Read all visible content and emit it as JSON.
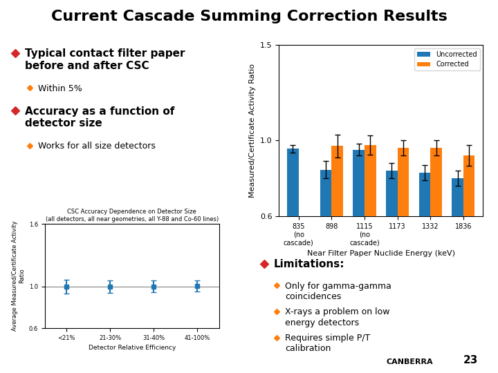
{
  "title": "Current Cascade Summing Correction Results",
  "annotations": [
    {
      "heading": "Typical contact filter paper\nbefore and after CSC",
      "items": [
        "Within 5%"
      ]
    },
    {
      "heading": "Accuracy as a function of\ndetector size",
      "items": [
        "Works for all size detectors"
      ]
    },
    {
      "heading": "Limitations:",
      "items": [
        "Only for gamma-gamma\ncoincidences",
        "X-rays a problem on low\nenergy detectors",
        "Requires simple P/T\ncalibration"
      ]
    }
  ],
  "footer": [
    "CANBERRA",
    "23"
  ],
  "chart_data": [
    {
      "type": "bar",
      "categories": [
        "835\n(no\ncascade)",
        "898",
        "1115\n(no\ncascade)",
        "1173",
        "1332",
        "1836"
      ],
      "series": [
        {
          "name": "Uncorrected",
          "values": [
            0.955,
            0.845,
            0.95,
            0.84,
            0.83,
            0.8
          ],
          "errors": [
            0.02,
            0.045,
            0.03,
            0.04,
            0.04,
            0.04
          ]
        },
        {
          "name": "Corrected",
          "values": [
            null,
            0.97,
            0.975,
            0.96,
            0.96,
            0.92
          ],
          "errors": [
            null,
            0.06,
            0.05,
            0.04,
            0.04,
            0.055
          ]
        }
      ],
      "ylabel": "Measured/Certificate Activity Ratio",
      "xlabel": "Near Filter Paper Nuclide Energy (keV)",
      "ylim": [
        0.6,
        1.5
      ],
      "yticks": [
        0.6,
        {
          "value": 1.0,
          "label": "1.0"
        },
        1.5
      ],
      "legend": "upper right"
    },
    {
      "type": "scatter",
      "title": "CSC Accuracy Dependence on Detector Size",
      "subtitle": "(all detectors, all near geometries, all Y-88 and Co-60 lines)",
      "categories": [
        "<21%",
        "21-30%",
        "31-40%",
        "41-100%"
      ],
      "values": [
        1.0,
        1.0,
        1.0,
        1.005
      ],
      "errors": [
        0.065,
        0.06,
        0.055,
        0.055
      ],
      "reference_line": 1.0,
      "marker": "square",
      "ylabel": "Average Measured/Certificate Activity\nRatio",
      "xlabel": "Detector Relative Efficiency",
      "ylim": [
        0.6,
        1.6
      ],
      "yticks": [
        0.6,
        {
          "value": 1.0,
          "label": "1.0"
        },
        1.6
      ]
    }
  ]
}
